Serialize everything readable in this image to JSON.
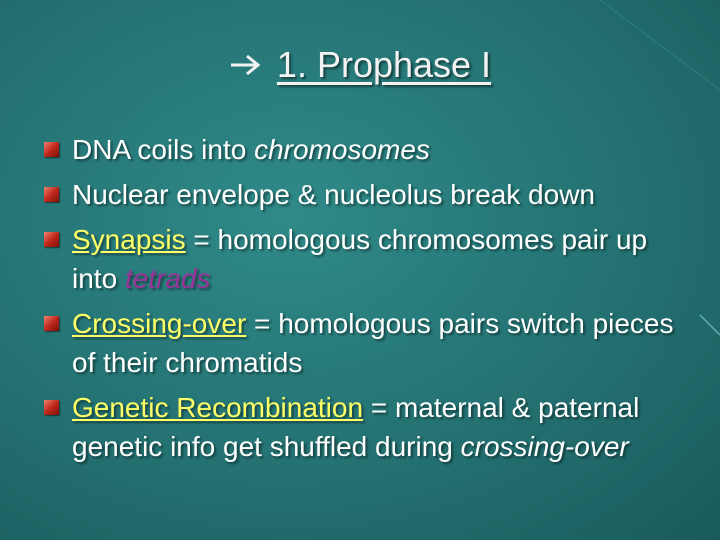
{
  "title": "1.  Prophase I",
  "bullets": [
    [
      "DNA coils into ",
      "chromosomes"
    ],
    [
      "Nuclear envelope & nucleolus break down"
    ],
    [
      "Synapsis",
      " = homologous chromosomes pair up into ",
      "tetrads"
    ],
    [
      "Crossing-over",
      " = homologous pairs switch pieces of their chromatids"
    ],
    [
      "Genetic Recombination",
      " = maternal & paternal genetic info get shuffled during ",
      "crossing-over"
    ]
  ]
}
